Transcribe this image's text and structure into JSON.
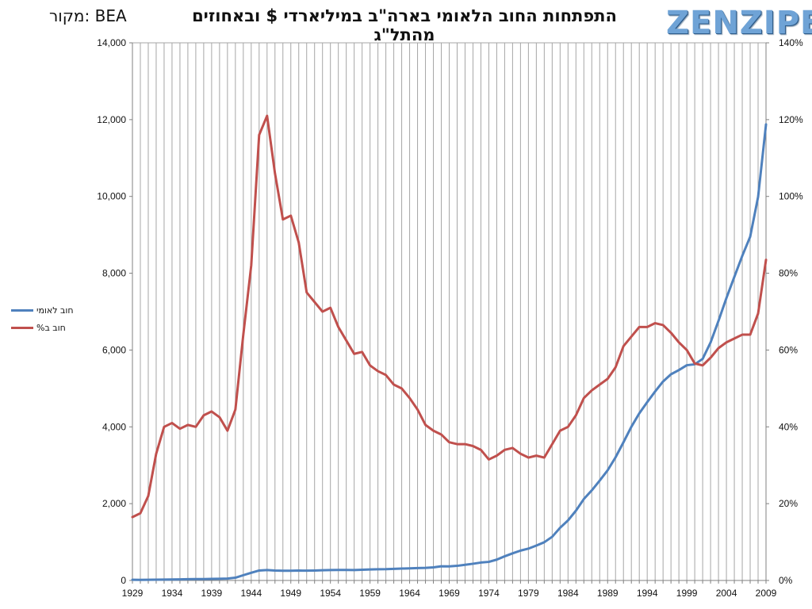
{
  "header": {
    "title": "התפתחות החוב הלאומי בארה\"ב במיליארדי $ ובאחוזים מהתל\"ג",
    "source": "מקור: BEA",
    "logo": "ZENZIPER"
  },
  "colors": {
    "debt": "#4f81bd",
    "pct": "#c0504d",
    "grid": "#a6a6a6"
  },
  "chart_data": {
    "type": "line",
    "title": "התפתחות החוב הלאומי בארה\"ב במיליארדי $ ובאחוזים מהתל\"ג",
    "x": [
      1929,
      1930,
      1931,
      1932,
      1933,
      1934,
      1935,
      1936,
      1937,
      1938,
      1939,
      1940,
      1941,
      1942,
      1943,
      1944,
      1945,
      1946,
      1947,
      1948,
      1949,
      1950,
      1951,
      1952,
      1953,
      1954,
      1955,
      1956,
      1957,
      1958,
      1959,
      1960,
      1961,
      1962,
      1963,
      1964,
      1965,
      1966,
      1967,
      1968,
      1969,
      1970,
      1971,
      1972,
      1973,
      1974,
      1975,
      1976,
      1977,
      1978,
      1979,
      1980,
      1981,
      1982,
      1983,
      1984,
      1985,
      1986,
      1987,
      1988,
      1989,
      1990,
      1991,
      1992,
      1993,
      1994,
      1995,
      1996,
      1997,
      1998,
      1999,
      2000,
      2001,
      2002,
      2003,
      2004,
      2005,
      2006,
      2007,
      2008,
      2009
    ],
    "x_ticks": [
      1929,
      1934,
      1939,
      1944,
      1949,
      1954,
      1959,
      1964,
      1969,
      1974,
      1979,
      1984,
      1989,
      1994,
      1999,
      2004,
      2009
    ],
    "y_left": {
      "ylim": [
        0,
        14000
      ],
      "ticks": [
        "0",
        "2,000",
        "4,000",
        "6,000",
        "8,000",
        "10,000",
        "12,000",
        "14,000"
      ]
    },
    "y_right": {
      "ylim": [
        0,
        140
      ],
      "ticks": [
        "0%",
        "20%",
        "40%",
        "60%",
        "80%",
        "100%",
        "120%",
        "140%"
      ]
    },
    "grid": true,
    "legend_position": "left",
    "series": [
      {
        "name": "חוב לאומי",
        "axis": "left",
        "values": [
          17,
          16,
          18,
          20,
          23,
          27,
          29,
          34,
          36,
          37,
          41,
          43,
          49,
          72,
          137,
          201,
          259,
          270,
          258,
          252,
          253,
          257,
          255,
          259,
          266,
          271,
          274,
          273,
          272,
          280,
          287,
          291,
          293,
          303,
          310,
          316,
          322,
          328,
          340,
          369,
          366,
          381,
          408,
          435,
          466,
          484,
          542,
          629,
          706,
          777,
          829,
          909,
          995,
          1137,
          1372,
          1564,
          1817,
          2121,
          2346,
          2601,
          2868,
          3206,
          3598,
          4002,
          4351,
          4643,
          4921,
          5181,
          5369,
          5478,
          5605,
          5628,
          5770,
          6198,
          6760,
          7354,
          7905,
          8451,
          8950,
          9986,
          11876
        ]
      },
      {
        "name": "%חוב ב",
        "axis": "right",
        "values": [
          16.5,
          17.5,
          22,
          33,
          40,
          41,
          39.5,
          40.5,
          40,
          43,
          44,
          42.5,
          39,
          44.5,
          64,
          82,
          116,
          121,
          106,
          94,
          95,
          88,
          75,
          72.5,
          70,
          71,
          66,
          62.5,
          59,
          59.5,
          56,
          54.5,
          53.5,
          51,
          50,
          47.5,
          44.5,
          40.5,
          39,
          38,
          36,
          35.5,
          35.5,
          35,
          34,
          31.5,
          32.5,
          34,
          34.5,
          33,
          32,
          32.5,
          32,
          35.5,
          39,
          40,
          43,
          47.5,
          49.5,
          51,
          52.5,
          55.5,
          61,
          63.5,
          66,
          66,
          67,
          66.5,
          64.5,
          62,
          60,
          56.5,
          56,
          58,
          60.5,
          62,
          63,
          64,
          64,
          69.5,
          83.5
        ]
      }
    ]
  }
}
